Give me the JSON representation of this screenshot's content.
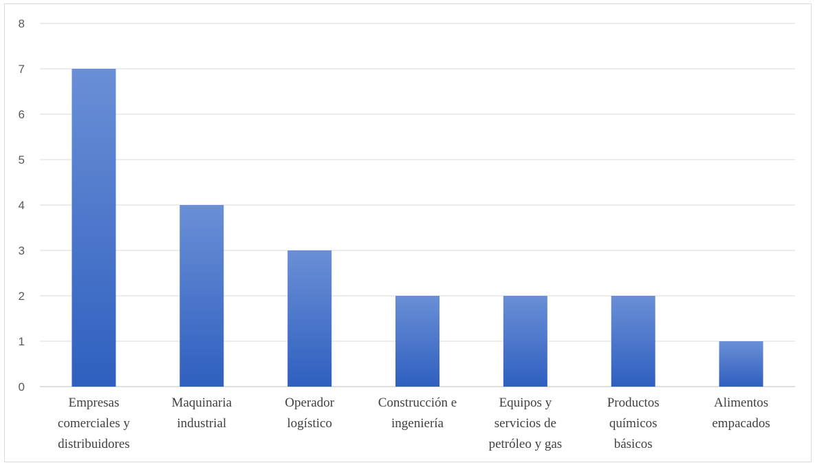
{
  "chart_data": {
    "type": "bar",
    "categories": [
      [
        "Empresas",
        "comerciales y",
        "distribuidores"
      ],
      [
        "Maquinaria",
        "industrial"
      ],
      [
        "Operador",
        "logístico"
      ],
      [
        "Construcción e",
        "ingeniería"
      ],
      [
        "Equipos y",
        "servicios de",
        "petróleo y gas"
      ],
      [
        "Productos",
        "químicos",
        "básicos"
      ],
      [
        "Alimentos",
        "empacados"
      ]
    ],
    "values": [
      7,
      4,
      3,
      2,
      2,
      2,
      1
    ],
    "ylim": [
      0,
      8
    ],
    "yticks": [
      0,
      1,
      2,
      3,
      4,
      5,
      6,
      7,
      8
    ],
    "grid": true,
    "colors": {
      "bar_top": "#6a8fd6",
      "bar_bottom": "#2f5fbf",
      "grid": "#d9d9d9",
      "axis": "#bfbfbf"
    }
  }
}
